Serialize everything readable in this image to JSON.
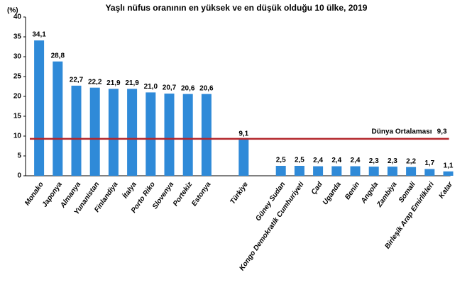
{
  "chart_data": {
    "type": "bar",
    "title": "Yaşlı nüfus oranının en yüksek ve en düşük olduğu 10 ülke, 2019",
    "y_label": "(%)",
    "categories": [
      "Monako",
      "Japonya",
      "Almanya",
      "Yunanistan",
      "Finlandiya",
      "İtalya",
      "Porto Riko",
      "Slovenya",
      "Portekiz",
      "Estonya",
      null,
      "Türkiye",
      null,
      "Güney Sudan",
      "Kongo Demokratik Cumhuriyeti",
      "Çad",
      "Uganda",
      "Benin",
      "Angola",
      "Zambiya",
      "Somali",
      "Birleşik Arap Emirlikleri",
      "Katar"
    ],
    "values": [
      34.1,
      28.8,
      22.7,
      22.2,
      21.9,
      21.9,
      21.0,
      20.7,
      20.6,
      20.6,
      null,
      9.1,
      null,
      2.5,
      2.5,
      2.4,
      2.4,
      2.4,
      2.3,
      2.3,
      2.2,
      1.7,
      1.1
    ],
    "value_labels": [
      "34,1",
      "28,8",
      "22,7",
      "22,2",
      "21,9",
      "21,9",
      "21,0",
      "20,7",
      "20,6",
      "20,6",
      null,
      "9,1",
      null,
      "2,5",
      "2,5",
      "2,4",
      "2,4",
      "2,4",
      "2,3",
      "2,3",
      "2,2",
      "1,7",
      "1,1"
    ],
    "color": "#2f8ad8",
    "ylim": [
      0,
      40
    ],
    "yticks": [
      0,
      5,
      10,
      15,
      20,
      25,
      30,
      35,
      40
    ],
    "reference": {
      "label": "Dünya Ortalaması",
      "value": 9.3,
      "value_label": "9,3",
      "color": "#b3262b"
    }
  }
}
